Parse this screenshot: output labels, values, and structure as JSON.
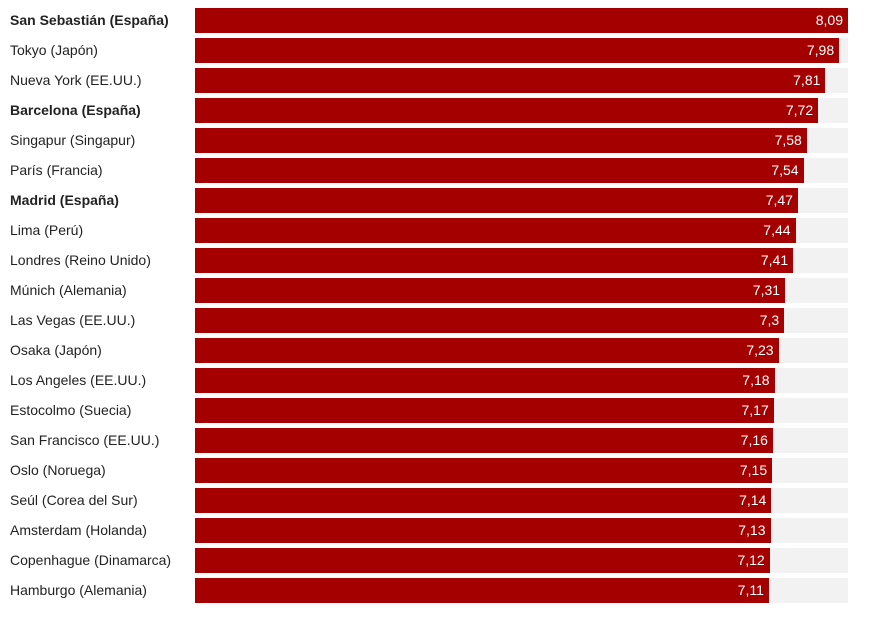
{
  "colors": {
    "bar": "#a50000",
    "track": "#f2f2f2",
    "label_text": "#222222",
    "value_text": "#ffffff"
  },
  "chart_data": {
    "type": "bar",
    "orientation": "horizontal",
    "xlim": [
      0,
      8.09
    ],
    "categories": [
      "San Sebastián (España)",
      "Tokyo (Japón)",
      "Nueva York (EE.UU.)",
      "Barcelona (España)",
      "Singapur (Singapur)",
      "París (Francia)",
      "Madrid (España)",
      "Lima (Perú)",
      "Londres (Reino Unido)",
      "Múnich (Alemania)",
      "Las Vegas (EE.UU.)",
      "Osaka (Japón)",
      "Los Angeles (EE.UU.)",
      "Estocolmo (Suecia)",
      "San Francisco (EE.UU.)",
      "Oslo (Noruega)",
      "Seúl (Corea del Sur)",
      "Amsterdam (Holanda)",
      "Copenhague (Dinamarca)",
      "Hamburgo (Alemania)"
    ],
    "values": [
      8.09,
      7.98,
      7.81,
      7.72,
      7.58,
      7.54,
      7.47,
      7.44,
      7.41,
      7.31,
      7.3,
      7.23,
      7.18,
      7.17,
      7.16,
      7.15,
      7.14,
      7.13,
      7.12,
      7.11
    ],
    "value_labels": [
      "8,09",
      "7,98",
      "7,81",
      "7,72",
      "7,58",
      "7,54",
      "7,47",
      "7,44",
      "7,41",
      "7,31",
      "7,3",
      "7,23",
      "7,18",
      "7,17",
      "7,16",
      "7,15",
      "7,14",
      "7,13",
      "7,12",
      "7,11"
    ],
    "bold_categories": [
      "San Sebastián (España)",
      "Barcelona (España)",
      "Madrid (España)"
    ],
    "grid": false,
    "legend": "none"
  }
}
